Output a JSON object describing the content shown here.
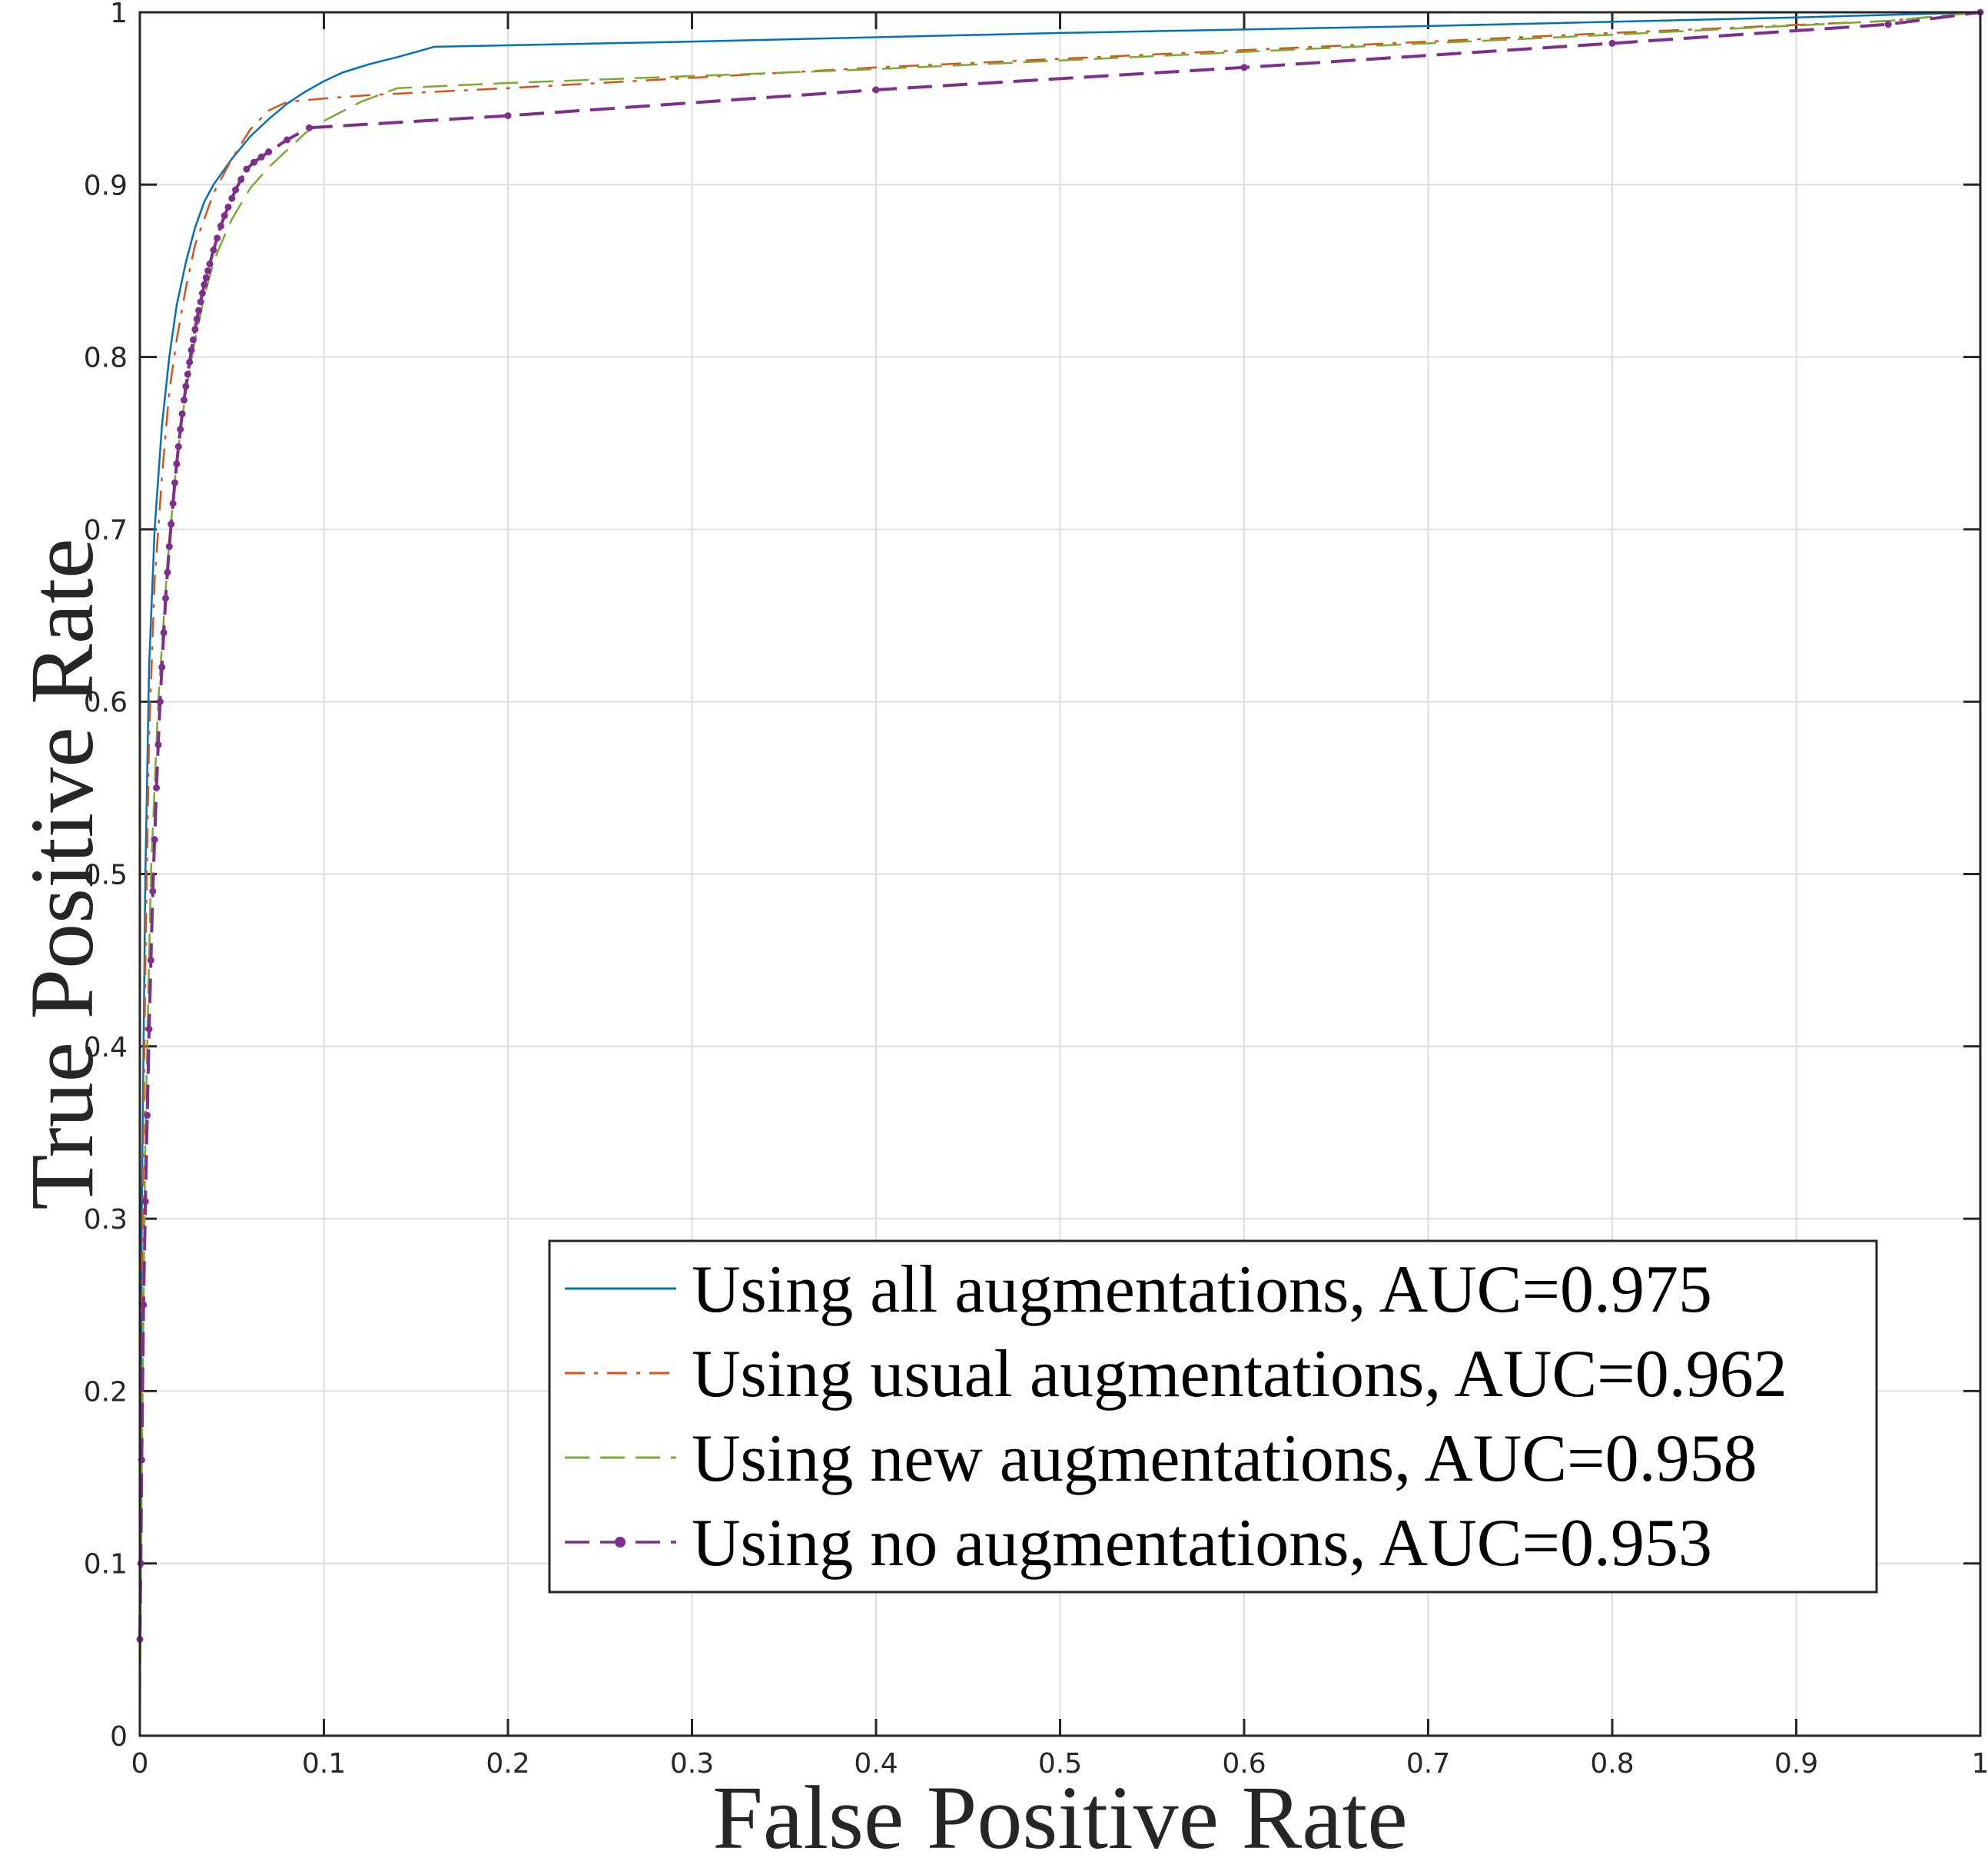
{
  "chart_data": {
    "type": "line",
    "title": "",
    "xlabel": "False Positive Rate",
    "ylabel": "True Positive Rate",
    "xlim": [
      0,
      1
    ],
    "ylim": [
      0,
      1
    ],
    "xticks": [
      0,
      0.1,
      0.2,
      0.3,
      0.4,
      0.5,
      0.6,
      0.7,
      0.8,
      0.9,
      1
    ],
    "yticks": [
      0,
      0.1,
      0.2,
      0.3,
      0.4,
      0.5,
      0.6,
      0.7,
      0.8,
      0.9,
      1
    ],
    "xtick_labels": [
      "0",
      "0.1",
      "0.2",
      "0.3",
      "0.4",
      "0.5",
      "0.6",
      "0.7",
      "0.8",
      "0.9",
      "1"
    ],
    "ytick_labels": [
      "0",
      "0.1",
      "0.2",
      "0.3",
      "0.4",
      "0.5",
      "0.6",
      "0.7",
      "0.8",
      "0.9",
      "1"
    ],
    "grid": true,
    "legend_position": "bottom-right",
    "series": [
      {
        "name": "Using all augmentations, AUC=0.975",
        "color": "#0072BD",
        "line_style": "solid",
        "marker": "none",
        "x": [
          0,
          0.001,
          0.003,
          0.005,
          0.008,
          0.012,
          0.016,
          0.02,
          0.025,
          0.03,
          0.035,
          0.04,
          0.05,
          0.06,
          0.07,
          0.08,
          0.09,
          0.1,
          0.11,
          0.125,
          0.14,
          0.16,
          0.3,
          0.5,
          0.7,
          0.9,
          1
        ],
        "y": [
          0.0,
          0.3,
          0.5,
          0.62,
          0.7,
          0.76,
          0.8,
          0.83,
          0.855,
          0.875,
          0.89,
          0.9,
          0.915,
          0.928,
          0.938,
          0.947,
          0.954,
          0.96,
          0.965,
          0.97,
          0.974,
          0.98,
          0.983,
          0.988,
          0.992,
          0.997,
          1.0
        ]
      },
      {
        "name": "Using usual augmentations, AUC=0.962",
        "color": "#D95319",
        "line_style": "dashdot",
        "marker": "none",
        "x": [
          0,
          0.001,
          0.003,
          0.005,
          0.008,
          0.012,
          0.016,
          0.02,
          0.025,
          0.03,
          0.035,
          0.04,
          0.05,
          0.06,
          0.07,
          0.08,
          0.1,
          0.125,
          0.2,
          0.4,
          0.6,
          0.8,
          0.95,
          1
        ],
        "y": [
          0.0,
          0.25,
          0.45,
          0.58,
          0.67,
          0.73,
          0.78,
          0.81,
          0.84,
          0.865,
          0.88,
          0.895,
          0.915,
          0.932,
          0.943,
          0.948,
          0.95,
          0.952,
          0.956,
          0.968,
          0.978,
          0.988,
          0.995,
          1.0
        ]
      },
      {
        "name": "Using new augmentations, AUC=0.958",
        "color": "#77AC30",
        "line_style": "dashed",
        "marker": "none",
        "x": [
          0,
          0.001,
          0.003,
          0.006,
          0.01,
          0.015,
          0.02,
          0.025,
          0.03,
          0.035,
          0.04,
          0.045,
          0.05,
          0.06,
          0.07,
          0.08,
          0.09,
          0.1,
          0.12,
          0.14,
          0.2,
          0.4,
          0.6,
          0.8,
          0.95,
          1
        ],
        "y": [
          0.0,
          0.15,
          0.35,
          0.5,
          0.6,
          0.68,
          0.74,
          0.78,
          0.81,
          0.835,
          0.855,
          0.868,
          0.88,
          0.898,
          0.91,
          0.92,
          0.93,
          0.937,
          0.948,
          0.956,
          0.959,
          0.967,
          0.977,
          0.987,
          0.995,
          1.0
        ]
      },
      {
        "name": "Using no augmentations, AUC=0.953",
        "color": "#7E2F8E",
        "line_style": "dashed",
        "marker": "dot",
        "x": [
          0,
          0.0005,
          0.001,
          0.002,
          0.003,
          0.004,
          0.005,
          0.006,
          0.007,
          0.008,
          0.009,
          0.01,
          0.011,
          0.012,
          0.013,
          0.014,
          0.015,
          0.016,
          0.017,
          0.018,
          0.019,
          0.02,
          0.021,
          0.022,
          0.023,
          0.024,
          0.025,
          0.026,
          0.027,
          0.028,
          0.029,
          0.03,
          0.031,
          0.032,
          0.033,
          0.034,
          0.035,
          0.036,
          0.037,
          0.038,
          0.04,
          0.042,
          0.044,
          0.046,
          0.048,
          0.05,
          0.052,
          0.055,
          0.058,
          0.062,
          0.066,
          0.07,
          0.08,
          0.092,
          0.2,
          0.4,
          0.6,
          0.8,
          0.95,
          1
        ],
        "y": [
          0.056,
          0.1,
          0.16,
          0.25,
          0.31,
          0.36,
          0.41,
          0.45,
          0.49,
          0.52,
          0.55,
          0.575,
          0.6,
          0.62,
          0.64,
          0.66,
          0.675,
          0.69,
          0.703,
          0.715,
          0.727,
          0.738,
          0.748,
          0.758,
          0.767,
          0.775,
          0.783,
          0.79,
          0.797,
          0.804,
          0.81,
          0.816,
          0.822,
          0.827,
          0.832,
          0.837,
          0.842,
          0.846,
          0.85,
          0.854,
          0.862,
          0.869,
          0.876,
          0.882,
          0.887,
          0.892,
          0.897,
          0.903,
          0.909,
          0.913,
          0.916,
          0.919,
          0.926,
          0.933,
          0.94,
          0.955,
          0.968,
          0.982,
          0.993,
          1.0
        ]
      }
    ]
  }
}
